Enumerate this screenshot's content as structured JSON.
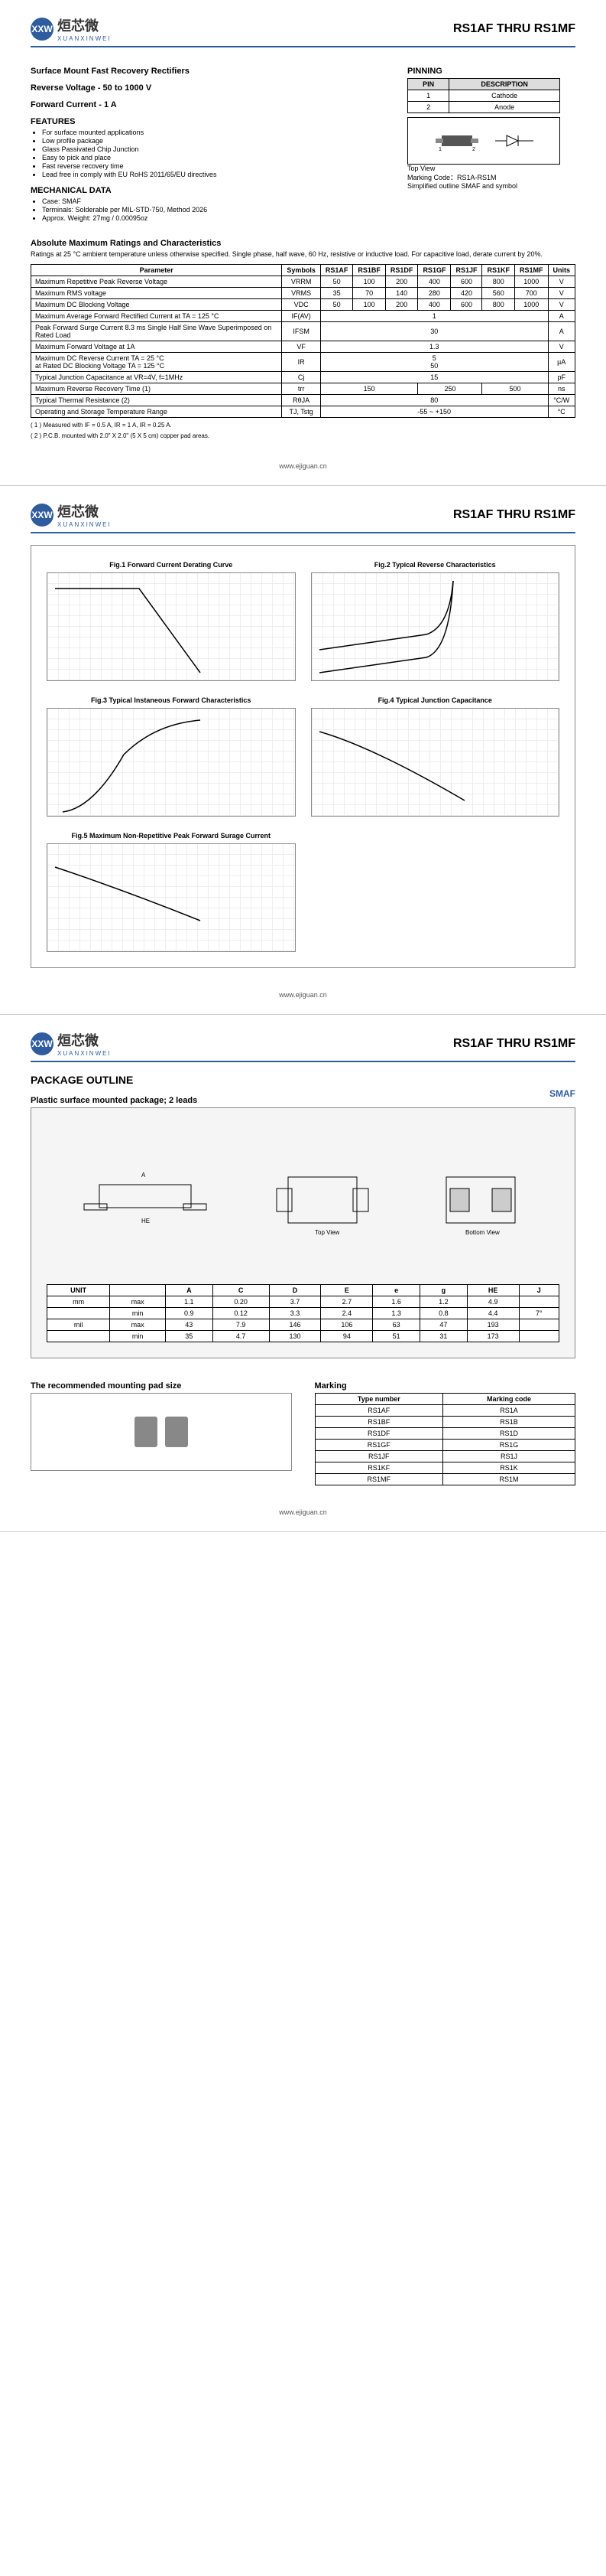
{
  "header": {
    "logo_icon": "XXW",
    "logo_cn": "烜芯微",
    "logo_en": "XUANXINWEI",
    "title": "RS1AF THRU RS1MF"
  },
  "page1": {
    "h1": "Surface Mount Fast Recovery Rectifiers",
    "h2": "Reverse Voltage - 50 to 1000 V",
    "h3": "Forward Current - 1 A",
    "features_title": "FEATURES",
    "features": [
      "For surface mounted applications",
      "Low profile package",
      "Glass Passivated Chip Junction",
      "Easy to pick and place",
      "Fast reverse recovery time",
      "Lead free in comply with EU RoHS 2011/65/EU directives"
    ],
    "mech_title": "MECHANICAL DATA",
    "mech": [
      "Case: SMAF",
      "Terminals: Solderable per MIL-STD-750, Method 2026",
      "Approx. Weight: 27mg / 0.00095oz"
    ],
    "pinning_title": "PINNING",
    "pin_headers": [
      "PIN",
      "DESCRIPTION"
    ],
    "pin_rows": [
      [
        "1",
        "Cathode"
      ],
      [
        "2",
        "Anode"
      ]
    ],
    "topview": "Top View",
    "marking": "Marking Code：RS1A-RS1M",
    "simplified": "Simplified outline SMAF and symbol",
    "abs_title": "Absolute Maximum Ratings and Characteristics",
    "abs_note": "Ratings at 25 °C ambient temperature unless otherwise specified. Single phase, half wave, 60 Hz, resistive or inductive load. For capacitive load, derate current by 20%.",
    "char_headers": [
      "Parameter",
      "Symbols",
      "RS1AF",
      "RS1BF",
      "RS1DF",
      "RS1GF",
      "RS1JF",
      "RS1KF",
      "RS1MF",
      "Units"
    ],
    "char_rows": [
      {
        "p": "Maximum Repetitive Peak Reverse Voltage",
        "s": "VRRM",
        "v": [
          "50",
          "100",
          "200",
          "400",
          "600",
          "800",
          "1000"
        ],
        "u": "V"
      },
      {
        "p": "Maximum RMS voltage",
        "s": "VRMS",
        "v": [
          "35",
          "70",
          "140",
          "280",
          "420",
          "560",
          "700"
        ],
        "u": "V"
      },
      {
        "p": "Maximum DC Blocking Voltage",
        "s": "VDC",
        "v": [
          "50",
          "100",
          "200",
          "400",
          "600",
          "800",
          "1000"
        ],
        "u": "V"
      },
      {
        "p": "Maximum Average Forward Rectified Current at TA = 125 °C",
        "s": "IF(AV)",
        "span": "1",
        "u": "A"
      },
      {
        "p": "Peak Forward Surge Current 8.3 ms Single Half Sine Wave Superimposed on Rated Load",
        "s": "IFSM",
        "span": "30",
        "u": "A"
      },
      {
        "p": "Maximum Forward Voltage at 1A",
        "s": "VF",
        "span": "1.3",
        "u": "V"
      },
      {
        "p": "Maximum DC Reverse Current TA = 25 °C\nat Rated DC Blocking Voltage TA = 125 °C",
        "s": "IR",
        "span": "5\n50",
        "u": "µA"
      },
      {
        "p": "Typical Junction Capacitance at VR=4V, f=1MHz",
        "s": "Cj",
        "span": "15",
        "u": "pF"
      },
      {
        "p": "Maximum Reverse Recovery Time (1)",
        "s": "trr",
        "g1": "150",
        "g2": "250",
        "g3": "500",
        "u": "ns"
      },
      {
        "p": "Typical Thermal Resistance (2)",
        "s": "RθJA",
        "span": "80",
        "u": "°C/W"
      },
      {
        "p": "Operating and Storage Temperature Range",
        "s": "TJ, Tstg",
        "span": "-55 ~ +150",
        "u": "°C"
      }
    ],
    "note1": "( 1 ) Measured with IF = 0.5 A, IR = 1 A, IR = 0.25 A.",
    "note2": "( 2 ) P.C.B. mounted with 2.0\" X 2.0\" (5 X 5 cm) copper pad areas."
  },
  "page2": {
    "charts": [
      "Fig.1 Forward Current Derating Curve",
      "Fig.2 Typical Reverse Characteristics",
      "Fig.3 Typical Instaneous Forward Characteristics",
      "Fig.4 Typical Junction Capacitance",
      "Fig.5 Maximum Non-Repetitive Peak Forward Surage Current"
    ]
  },
  "page3": {
    "pkg_title": "PACKAGE OUTLINE",
    "pkg_sub": "Plastic surface mounted package; 2 leads",
    "smaf": "SMAF",
    "dim_headers": [
      "UNIT",
      "",
      "A",
      "C",
      "D",
      "E",
      "e",
      "g",
      "HE",
      "J"
    ],
    "dim_rows": [
      [
        "mm",
        "max",
        "1.1",
        "0.20",
        "3.7",
        "2.7",
        "1.6",
        "1.2",
        "4.9",
        ""
      ],
      [
        "",
        "min",
        "0.9",
        "0.12",
        "3.3",
        "2.4",
        "1.3",
        "0.8",
        "4.4",
        "7°"
      ],
      [
        "mil",
        "max",
        "43",
        "7.9",
        "146",
        "106",
        "63",
        "47",
        "193",
        ""
      ],
      [
        "",
        "min",
        "35",
        "4.7",
        "130",
        "94",
        "51",
        "31",
        "173",
        ""
      ]
    ],
    "mount_title": "The recommended mounting pad size",
    "mark_title": "Marking",
    "mark_headers": [
      "Type number",
      "Marking code"
    ],
    "mark_rows": [
      [
        "RS1AF",
        "RS1A"
      ],
      [
        "RS1BF",
        "RS1B"
      ],
      [
        "RS1DF",
        "RS1D"
      ],
      [
        "RS1GF",
        "RS1G"
      ],
      [
        "RS1JF",
        "RS1J"
      ],
      [
        "RS1KF",
        "RS1K"
      ],
      [
        "RS1MF",
        "RS1M"
      ]
    ]
  },
  "footer": "www.ejiguan.cn"
}
